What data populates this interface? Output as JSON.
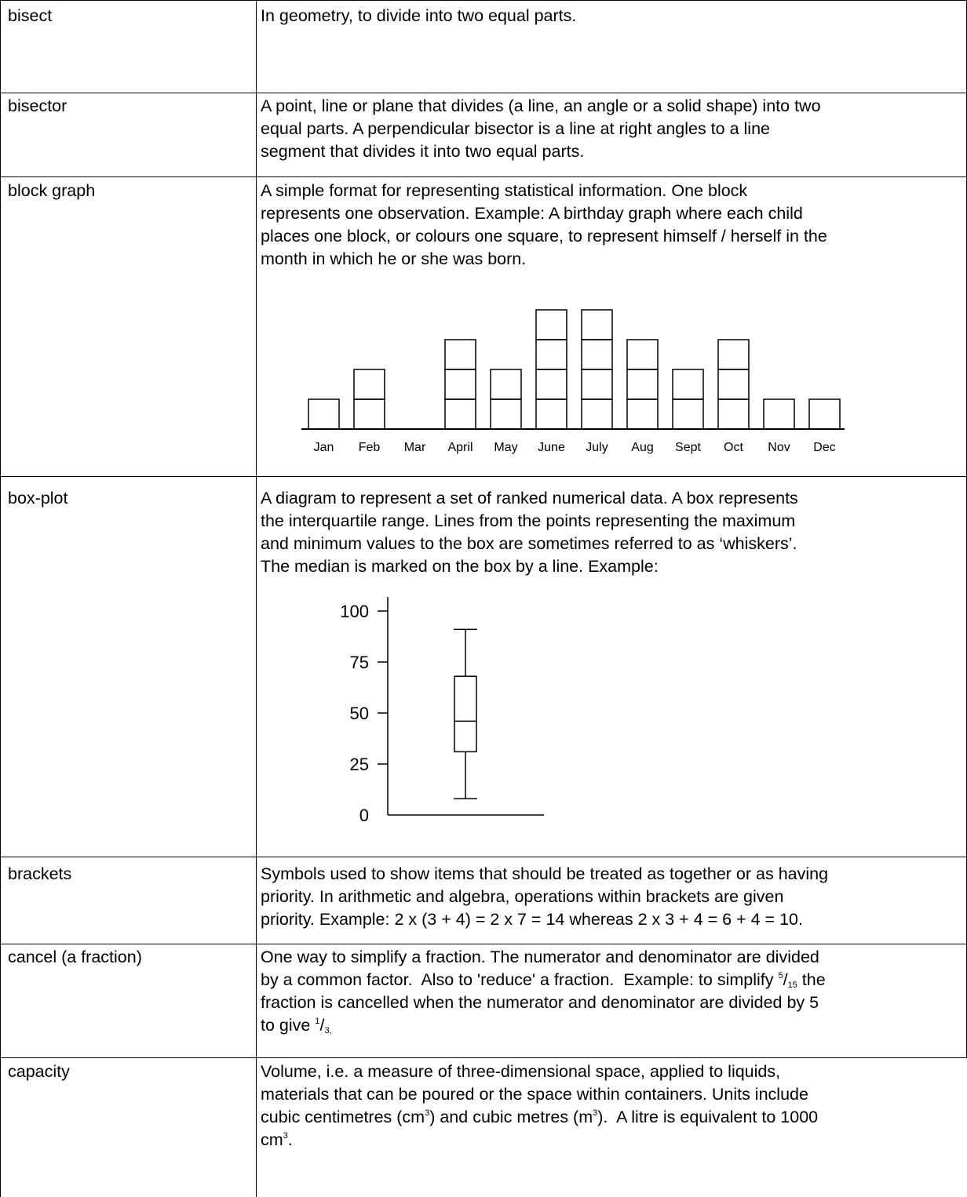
{
  "glossary": {
    "bisect": {
      "term": "bisect",
      "definition": "In geometry, to divide into two equal parts."
    },
    "bisector": {
      "term": "bisector",
      "definition": "A point, line or plane that divides (a line, an angle or a solid shape) into two\nequal parts.  A perpendicular bisector is a line at right angles to a line\nsegment that divides it into two equal parts."
    },
    "block_graph": {
      "term": "block graph",
      "definition": "A simple format for representing statistical information.  One block\nrepresents one observation.  Example: A birthday graph where each child\nplaces one block, or colours one square, to represent himself / herself in the\nmonth in which he or she was born."
    },
    "box_plot": {
      "term": "box-plot",
      "definition": "A diagram to represent a set of ranked numerical data.  A box represents\nthe interquartile range.  Lines from the points representing the maximum\nand minimum values to the box are sometimes referred to as ‘whiskers’.\nThe median is marked on the box by a line.  Example:"
    },
    "brackets": {
      "term": "brackets",
      "definition": "Symbols used to show items that should be treated as together or as having\npriority.  In arithmetic and algebra, operations within brackets are given\npriority.  Example: 2 x (3 + 4) = 2 x 7 = 14 whereas 2 x 3 + 4 = 6 + 4 = 10."
    },
    "cancel": {
      "term": "cancel (a fraction)",
      "line1": "One way to simplify a fraction.  The numerator and denominator are divided",
      "line2_before": "by a common factor.  Also to 'reduce' a fraction.  Example: to simplify ",
      "frac1_num": "5",
      "frac1_den": "15",
      "line2_after": " the",
      "line3": "fraction is cancelled when the numerator and denominator are divided by 5",
      "line4_before": "to give ",
      "frac2_num": "1",
      "frac2_den": "3,"
    },
    "capacity": {
      "term": "capacity",
      "line1": "Volume, i.e. a measure of three-dimensional space, applied to liquids,",
      "line2": "materials that can be poured or the space within containers.  Units include",
      "line3_a": "cubic centimetres (cm",
      "line3_b": ") and cubic metres (m",
      "line3_c": ").  A litre is equivalent to 1000",
      "line4_a": "cm",
      "line4_b": ".",
      "exponent": "3"
    }
  },
  "chart_data": [
    {
      "type": "bar",
      "categories": [
        "Jan",
        "Feb",
        "Mar",
        "April",
        "May",
        "June",
        "July",
        "Aug",
        "Sept",
        "Oct",
        "Nov",
        "Dec"
      ],
      "values": [
        1,
        2,
        0,
        3,
        2,
        4,
        4,
        3,
        2,
        3,
        1,
        1
      ],
      "style": "stacked unit blocks",
      "title": "",
      "xlabel": "",
      "ylabel": ""
    },
    {
      "type": "box",
      "ytick_labels": [
        "100",
        "75",
        "50",
        "25",
        "0"
      ],
      "yticks": [
        100,
        75,
        50,
        25,
        0
      ],
      "ylim": [
        0,
        100
      ],
      "min": 8,
      "q1": 31,
      "median": 46,
      "q3": 68,
      "max": 91,
      "title": "",
      "xlabel": "",
      "ylabel": ""
    }
  ]
}
